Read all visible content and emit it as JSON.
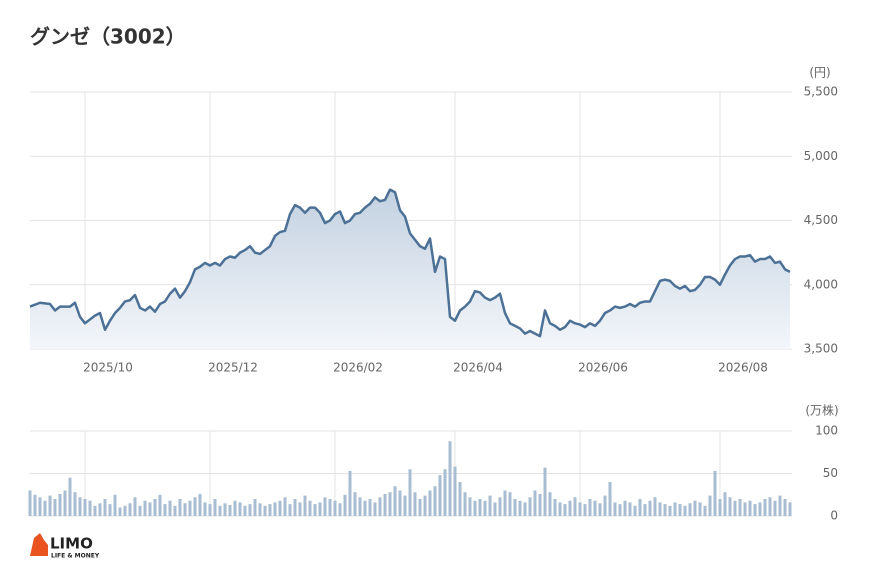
{
  "chart_data": [
    {
      "type": "line",
      "title": "グンゼ（3002）",
      "y_label": "(円)",
      "color": "#4d7196",
      "grid": true,
      "categories": [
        null,
        null,
        null,
        null,
        null,
        null,
        null,
        null,
        null,
        null,
        null,
        "2025/10",
        null,
        null,
        null,
        null,
        null,
        null,
        null,
        null,
        null,
        null,
        null,
        null,
        null,
        null,
        null,
        null,
        null,
        null,
        null,
        null,
        null,
        null,
        null,
        null,
        "2025/12",
        null,
        null,
        null,
        null,
        null,
        null,
        null,
        null,
        null,
        null,
        null,
        null,
        null,
        null,
        null,
        null,
        null,
        null,
        null,
        null,
        null,
        null,
        null,
        null,
        "2026/02",
        null,
        null,
        null,
        null,
        null,
        null,
        null,
        null,
        null,
        null,
        null,
        null,
        null,
        null,
        null,
        null,
        null,
        null,
        null,
        null,
        null,
        null,
        null,
        "2026/04",
        null,
        null,
        null,
        null,
        null,
        null,
        null,
        null,
        null,
        null,
        null,
        null,
        null,
        null,
        null,
        null,
        null,
        null,
        null,
        null,
        null,
        null,
        null,
        null,
        "2026/06",
        null,
        null,
        null,
        null,
        null,
        null,
        null,
        null,
        null,
        null,
        null,
        null,
        null,
        null,
        null,
        null,
        null,
        null,
        null,
        null,
        null,
        null,
        null,
        null,
        null,
        null,
        null,
        "2026/08",
        null,
        null,
        null,
        null,
        null,
        null,
        null,
        null,
        null,
        null,
        null,
        null,
        null,
        null
      ],
      "values": [
        3830,
        3845,
        3860,
        3855,
        3850,
        3800,
        3830,
        3830,
        3830,
        3860,
        3750,
        3700,
        3730,
        3760,
        3780,
        3650,
        3720,
        3780,
        3820,
        3870,
        3880,
        3920,
        3820,
        3800,
        3830,
        3790,
        3850,
        3870,
        3930,
        3970,
        3900,
        3950,
        4020,
        4120,
        4140,
        4170,
        4150,
        4170,
        4150,
        4200,
        4220,
        4210,
        4250,
        4270,
        4300,
        4250,
        4240,
        4270,
        4300,
        4380,
        4410,
        4420,
        4550,
        4620,
        4600,
        4560,
        4600,
        4600,
        4560,
        4480,
        4500,
        4550,
        4570,
        4480,
        4500,
        4550,
        4560,
        4600,
        4630,
        4680,
        4650,
        4660,
        4740,
        4720,
        4580,
        4530,
        4400,
        4350,
        4300,
        4280,
        4360,
        4100,
        4220,
        4200,
        3750,
        3720,
        3800,
        3830,
        3870,
        3950,
        3940,
        3900,
        3880,
        3900,
        3930,
        3780,
        3700,
        3680,
        3660,
        3620,
        3640,
        3620,
        3600,
        3800,
        3700,
        3680,
        3650,
        3670,
        3720,
        3700,
        3690,
        3670,
        3700,
        3680,
        3720,
        3780,
        3800,
        3830,
        3820,
        3830,
        3850,
        3830,
        3860,
        3870,
        3870,
        3950,
        4030,
        4040,
        4030,
        3990,
        3970,
        3990,
        3950,
        3960,
        4000,
        4060,
        4060,
        4040,
        4000,
        4080,
        4150,
        4200,
        4220,
        4220,
        4230,
        4180,
        4200,
        4200,
        4220,
        4170,
        4180,
        4120,
        4100
      ],
      "ylim": [
        3500,
        5500
      ],
      "yticks": [
        {
          "value": 5500,
          "label": "5,500"
        },
        {
          "value": 5000,
          "label": "5,000"
        },
        {
          "value": 4500,
          "label": "4,500"
        },
        {
          "value": 4000,
          "label": "4,000"
        },
        {
          "value": 3500,
          "label": "3,500"
        }
      ]
    },
    {
      "type": "bar",
      "y_label": "(万株)",
      "color": "#a9bdd2",
      "grid": true,
      "values": [
        30,
        25,
        22,
        18,
        24,
        20,
        26,
        30,
        45,
        28,
        22,
        20,
        18,
        12,
        15,
        20,
        14,
        25,
        10,
        12,
        15,
        22,
        12,
        18,
        16,
        20,
        25,
        14,
        18,
        12,
        20,
        15,
        18,
        22,
        26,
        16,
        14,
        20,
        12,
        15,
        13,
        18,
        16,
        12,
        14,
        20,
        15,
        12,
        14,
        16,
        18,
        22,
        14,
        20,
        16,
        24,
        18,
        14,
        16,
        22,
        20,
        18,
        15,
        25,
        53,
        28,
        22,
        18,
        20,
        16,
        22,
        26,
        28,
        35,
        30,
        24,
        55,
        28,
        20,
        24,
        30,
        35,
        48,
        55,
        88,
        58,
        40,
        28,
        22,
        18,
        20,
        18,
        24,
        16,
        22,
        30,
        28,
        20,
        18,
        16,
        22,
        30,
        26,
        57,
        28,
        20,
        16,
        14,
        18,
        22,
        16,
        14,
        20,
        18,
        15,
        24,
        40,
        16,
        14,
        18,
        16,
        12,
        20,
        14,
        18,
        22,
        16,
        14,
        12,
        16,
        14,
        12,
        15,
        18,
        16,
        12,
        24,
        53,
        20,
        28,
        22,
        18,
        20,
        16,
        18,
        14,
        16,
        20,
        22,
        18,
        24,
        20,
        16
      ],
      "ylim": [
        0,
        100
      ],
      "yticks": [
        100,
        50,
        0
      ]
    }
  ],
  "logo": {
    "name": "LIMO",
    "tagline": "LIFE & MONEY"
  }
}
